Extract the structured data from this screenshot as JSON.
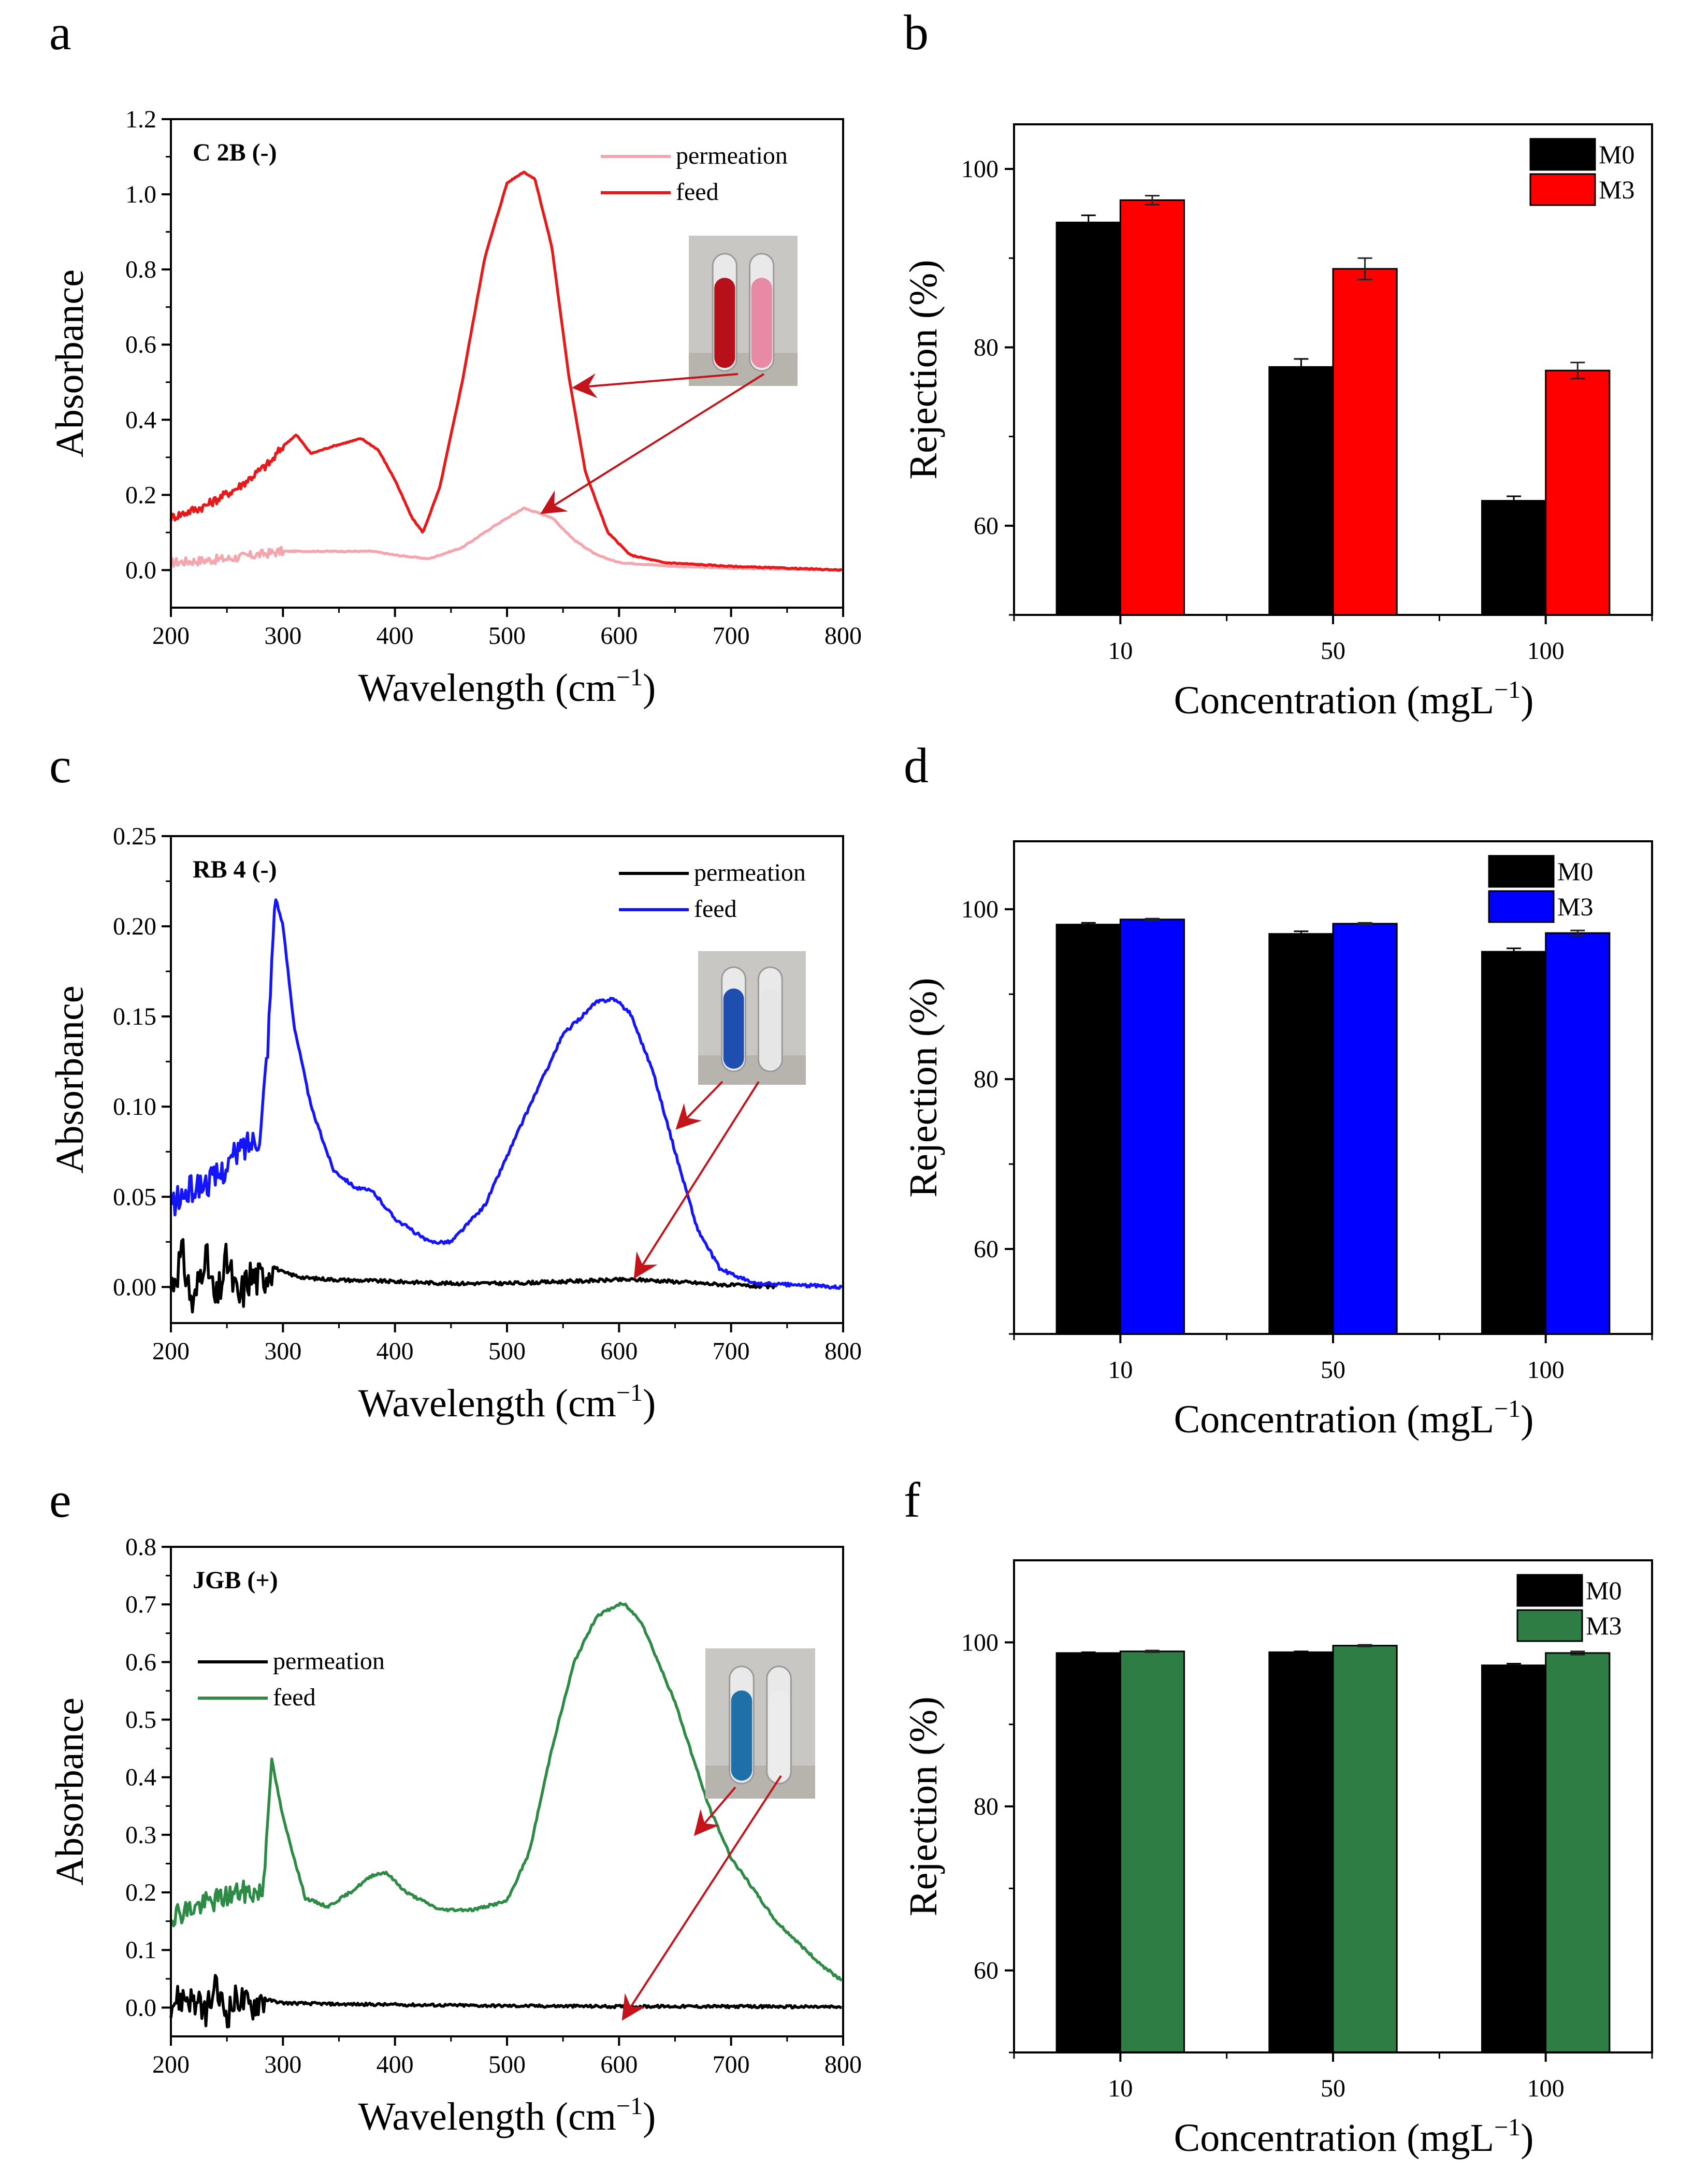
{
  "figure_letters": [
    "a",
    "b",
    "c",
    "d",
    "e",
    "f"
  ],
  "chart_data": [
    {
      "panel": "a",
      "type": "line",
      "annotation": "C 2B (-)",
      "xlabel": "Wavelength",
      "xunit": "cm",
      "xunit_exp": "−1",
      "ylabel": "Absorbance",
      "xlim": [
        200,
        800
      ],
      "ylim": [
        -0.1,
        1.2
      ],
      "xticks": [
        200,
        300,
        400,
        500,
        600,
        700,
        800
      ],
      "yticks": [
        "0.0",
        "0.2",
        "0.4",
        "0.6",
        "0.8",
        "1.0",
        "1.2"
      ],
      "yticks_values": [
        0.0,
        0.2,
        0.4,
        0.6,
        0.8,
        1.0,
        1.2
      ],
      "legend": [
        "permeation",
        "feed"
      ],
      "series": [
        {
          "name": "permeation",
          "color": "#F4A6AE",
          "x": [
            200,
            250,
            300,
            310,
            350,
            380,
            400,
            430,
            460,
            490,
            515,
            540,
            560,
            580,
            600,
            650,
            700,
            800
          ],
          "y": [
            0.02,
            0.03,
            0.05,
            0.05,
            0.05,
            0.05,
            0.04,
            0.03,
            0.06,
            0.12,
            0.165,
            0.14,
            0.08,
            0.04,
            0.02,
            0.01,
            0.005,
            0.0
          ]
        },
        {
          "name": "feed",
          "color": "#E8191B",
          "x": [
            200,
            230,
            260,
            290,
            300,
            312,
            325,
            345,
            370,
            385,
            400,
            415,
            425,
            440,
            460,
            480,
            500,
            515,
            525,
            540,
            555,
            570,
            590,
            610,
            640,
            700,
            800
          ],
          "y": [
            0.14,
            0.17,
            0.22,
            0.29,
            0.33,
            0.36,
            0.31,
            0.33,
            0.35,
            0.32,
            0.24,
            0.14,
            0.1,
            0.22,
            0.5,
            0.83,
            1.03,
            1.06,
            1.04,
            0.86,
            0.52,
            0.26,
            0.1,
            0.04,
            0.02,
            0.01,
            0.0
          ]
        }
      ]
    },
    {
      "panel": "b",
      "type": "bar",
      "xlabel": "Concentration",
      "xunit": "mgL",
      "xunit_exp": "−1",
      "ylabel": "Rejection (%)",
      "categories": [
        "10",
        "50",
        "100"
      ],
      "ylim": [
        50,
        105
      ],
      "yticks": [
        60,
        80,
        100
      ],
      "series": [
        {
          "name": "M0",
          "color": "#000000",
          "values": [
            94.0,
            77.8,
            62.8
          ],
          "errors": [
            0.8,
            0.9,
            0.5
          ]
        },
        {
          "name": "M3",
          "color": "#FF0000",
          "values": [
            96.5,
            88.8,
            77.4
          ],
          "errors": [
            0.5,
            1.2,
            0.9
          ]
        }
      ]
    },
    {
      "panel": "c",
      "type": "line",
      "annotation": "RB 4 (-)",
      "xlabel": "Wavelength",
      "xunit": "cm",
      "xunit_exp": "−1",
      "ylabel": "Absorbance",
      "xlim": [
        200,
        800
      ],
      "ylim": [
        -0.02,
        0.25
      ],
      "xticks": [
        200,
        300,
        400,
        500,
        600,
        700,
        800
      ],
      "yticks": [
        "0.00",
        "0.05",
        "0.10",
        "0.15",
        "0.20",
        "0.25"
      ],
      "yticks_values": [
        0.0,
        0.05,
        0.1,
        0.15,
        0.2,
        0.25
      ],
      "legend": [
        "permeation",
        "feed"
      ],
      "series": [
        {
          "name": "permeation",
          "color": "#000000",
          "x": [
            200,
            210,
            220,
            230,
            240,
            250,
            260,
            270,
            280,
            290,
            300,
            320,
            350,
            400,
            450,
            500,
            550,
            600,
            620,
            650,
            700,
            740
          ],
          "y": [
            0.0,
            0.018,
            -0.012,
            0.02,
            -0.01,
            0.015,
            -0.008,
            0.006,
            0.004,
            0.012,
            0.008,
            0.005,
            0.004,
            0.003,
            0.002,
            0.002,
            0.003,
            0.004,
            0.004,
            0.003,
            0.001,
            0.0
          ]
        },
        {
          "name": "feed",
          "color": "#1414FF",
          "x": [
            200,
            220,
            240,
            260,
            280,
            287,
            293,
            300,
            310,
            325,
            345,
            365,
            380,
            400,
            430,
            450,
            480,
            520,
            550,
            580,
            595,
            610,
            630,
            650,
            670,
            690,
            720,
            800
          ],
          "y": [
            0.045,
            0.055,
            0.06,
            0.075,
            0.085,
            0.14,
            0.217,
            0.2,
            0.145,
            0.1,
            0.065,
            0.055,
            0.053,
            0.038,
            0.025,
            0.025,
            0.045,
            0.1,
            0.14,
            0.158,
            0.16,
            0.152,
            0.12,
            0.075,
            0.032,
            0.01,
            0.002,
            0.0
          ]
        }
      ]
    },
    {
      "panel": "d",
      "type": "bar",
      "xlabel": "Concentration",
      "xunit": "mgL",
      "xunit_exp": "−1",
      "ylabel": "Rejection (%)",
      "categories": [
        "10",
        "50",
        "100"
      ],
      "ylim": [
        50,
        108
      ],
      "yticks": [
        60,
        80,
        100
      ],
      "series": [
        {
          "name": "M0",
          "color": "#000000",
          "values": [
            98.2,
            97.1,
            95.0
          ],
          "errors": [
            0.2,
            0.3,
            0.4
          ]
        },
        {
          "name": "M3",
          "color": "#0000FF",
          "values": [
            98.8,
            98.3,
            97.2
          ],
          "errors": [
            0.1,
            0.1,
            0.3
          ]
        }
      ]
    },
    {
      "panel": "e",
      "type": "line",
      "annotation": "JGB (+)",
      "xlabel": "Wavelength",
      "xunit": "cm",
      "xunit_exp": "−1",
      "ylabel": "Absorbance",
      "xlim": [
        200,
        800
      ],
      "ylim": [
        -0.05,
        0.8
      ],
      "xticks": [
        200,
        300,
        400,
        500,
        600,
        700,
        800
      ],
      "yticks": [
        "0.0",
        "0.1",
        "0.2",
        "0.3",
        "0.4",
        "0.5",
        "0.6",
        "0.7",
        "0.8"
      ],
      "yticks_values": [
        0.0,
        0.1,
        0.2,
        0.3,
        0.4,
        0.5,
        0.6,
        0.7,
        0.8
      ],
      "legend": [
        "permeation",
        "feed"
      ],
      "series": [
        {
          "name": "permeation",
          "color": "#000000",
          "x": [
            200,
            215,
            230,
            240,
            250,
            260,
            270,
            280,
            290,
            300,
            350,
            400,
            500,
            600,
            700,
            800
          ],
          "y": [
            0.01,
            0.02,
            -0.01,
            0.03,
            -0.01,
            0.02,
            0.0,
            0.015,
            0.012,
            0.008,
            0.006,
            0.005,
            0.003,
            0.002,
            0.002,
            0.001
          ]
        },
        {
          "name": "feed",
          "color": "#2E8B45",
          "x": [
            200,
            230,
            260,
            282,
            290,
            300,
            320,
            340,
            360,
            380,
            392,
            410,
            440,
            470,
            500,
            520,
            540,
            560,
            580,
            600,
            605,
            620,
            650,
            680,
            700,
            740,
            780,
            800
          ],
          "y": [
            0.16,
            0.18,
            0.2,
            0.2,
            0.43,
            0.33,
            0.19,
            0.175,
            0.2,
            0.23,
            0.235,
            0.2,
            0.17,
            0.17,
            0.185,
            0.27,
            0.45,
            0.6,
            0.68,
            0.7,
            0.7,
            0.67,
            0.53,
            0.35,
            0.26,
            0.15,
            0.075,
            0.045
          ]
        }
      ]
    },
    {
      "panel": "f",
      "type": "bar",
      "xlabel": "Concentration",
      "xunit": "mgL",
      "xunit_exp": "−1",
      "ylabel": "Rejection (%)",
      "categories": [
        "10",
        "50",
        "100"
      ],
      "ylim": [
        50,
        110
      ],
      "yticks": [
        60,
        80,
        100
      ],
      "series": [
        {
          "name": "M0",
          "color": "#000000",
          "values": [
            98.7,
            98.8,
            97.2
          ],
          "errors": [
            0.1,
            0.1,
            0.2
          ]
        },
        {
          "name": "M3",
          "color": "#2E7D45",
          "values": [
            98.9,
            99.6,
            98.7
          ],
          "errors": [
            0.1,
            0.1,
            0.2
          ]
        }
      ]
    }
  ]
}
